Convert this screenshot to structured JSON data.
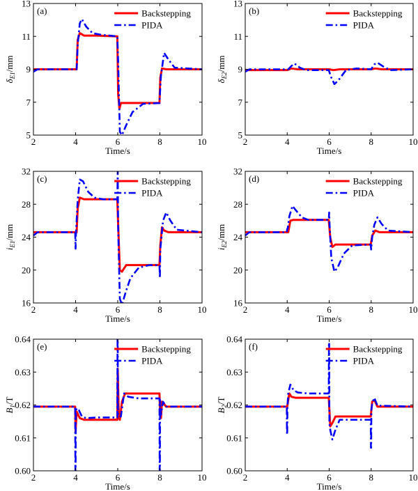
{
  "colors": {
    "backstepping": "#ff0000",
    "pida": "#0000ff",
    "axis": "#000000"
  },
  "chart_data": [
    {
      "type": "line",
      "panel": "(a)",
      "xlabel": "Time/s",
      "ylabel": "δE1/mm",
      "ylabel_parts": {
        "main": "δ",
        "sub": "E1",
        "unit": "/mm"
      },
      "xlim": [
        2,
        10
      ],
      "ylim": [
        5,
        13
      ],
      "xticks": [
        "2",
        "4",
        "6",
        "8",
        "10"
      ],
      "yticks": [
        "5",
        "7",
        "9",
        "11",
        "13"
      ],
      "legend": "top-right",
      "series": [
        {
          "name": "Backstepping",
          "style": "solid",
          "x": [
            2,
            4.05,
            4.1,
            4.2,
            4.4,
            5,
            5.98,
            6.02,
            6.08,
            6.15,
            6.3,
            7,
            7.98,
            8.02,
            8.1,
            8.3,
            10
          ],
          "y": [
            9,
            9,
            10.8,
            11.2,
            11.05,
            11.05,
            11.0,
            7.5,
            6.6,
            6.95,
            6.95,
            6.95,
            6.95,
            8.5,
            9.05,
            9.0,
            9.0
          ]
        },
        {
          "name": "PIDA",
          "style": "dashdot",
          "x": [
            2,
            2.2,
            4.05,
            4.1,
            4.2,
            4.3,
            4.5,
            4.8,
            5.2,
            5.98,
            6.02,
            6.1,
            6.2,
            6.4,
            6.7,
            7.2,
            7.98,
            8.05,
            8.2,
            8.4,
            8.7,
            10
          ],
          "y": [
            8.85,
            9.0,
            9.0,
            10.5,
            11.8,
            12.05,
            11.6,
            11.2,
            11.1,
            11.0,
            9.5,
            5.2,
            5.0,
            5.6,
            6.4,
            6.9,
            6.95,
            8.6,
            10.0,
            9.6,
            9.1,
            9.0
          ]
        }
      ]
    },
    {
      "type": "line",
      "panel": "(b)",
      "xlabel": "Time/s",
      "ylabel": "δE2/mm",
      "ylabel_parts": {
        "main": "δ",
        "sub": "E2",
        "unit": "/mm"
      },
      "xlim": [
        2,
        10
      ],
      "ylim": [
        5,
        13
      ],
      "xticks": [
        "2",
        "4",
        "6",
        "8",
        "10"
      ],
      "yticks": [
        "5",
        "7",
        "9",
        "11",
        "13"
      ],
      "legend": "top-right",
      "series": [
        {
          "name": "Backstepping",
          "style": "solid",
          "x": [
            2,
            4,
            4.2,
            4.5,
            6,
            6.2,
            6.5,
            8,
            8.2,
            8.5,
            10
          ],
          "y": [
            8.95,
            8.95,
            9.05,
            9.0,
            9.0,
            8.95,
            9.0,
            9.0,
            9.05,
            9.0,
            9.0
          ]
        },
        {
          "name": "PIDA",
          "style": "dashdot",
          "x": [
            2,
            2.2,
            4.05,
            4.2,
            4.35,
            4.6,
            4.9,
            5.98,
            6.1,
            6.25,
            6.45,
            6.8,
            7.3,
            8.0,
            8.15,
            8.3,
            8.6,
            8.9,
            10
          ],
          "y": [
            8.85,
            9.0,
            9.0,
            9.2,
            9.35,
            9.1,
            8.95,
            8.95,
            8.5,
            8.1,
            8.35,
            8.95,
            9.05,
            9.0,
            9.3,
            9.4,
            9.15,
            8.95,
            9.0
          ]
        }
      ]
    },
    {
      "type": "line",
      "panel": "(c)",
      "xlabel": "Time/s",
      "ylabel": "iE1/mm",
      "ylabel_parts": {
        "main": "i",
        "sub": "E1",
        "unit": "/mm"
      },
      "xlim": [
        2,
        10
      ],
      "ylim": [
        16,
        32
      ],
      "xticks": [
        "2",
        "4",
        "6",
        "8",
        "10"
      ],
      "yticks": [
        "16",
        "20",
        "24",
        "28",
        "32"
      ],
      "legend": "top-right",
      "series": [
        {
          "name": "Backstepping",
          "style": "solid",
          "x": [
            2,
            4.05,
            4.1,
            4.2,
            4.4,
            5,
            5.98,
            6.02,
            6.1,
            6.2,
            6.4,
            7,
            7.98,
            8.02,
            8.1,
            8.2,
            8.4,
            10
          ],
          "y": [
            24.6,
            24.6,
            27.5,
            28.8,
            28.6,
            28.6,
            28.6,
            25.5,
            20.0,
            19.8,
            20.6,
            20.6,
            20.6,
            23.0,
            25.2,
            24.8,
            24.6,
            24.6
          ]
        },
        {
          "name": "PIDA",
          "style": "dashdot",
          "x": [
            2,
            2.2,
            3.98,
            4.0,
            4.02,
            4.1,
            4.2,
            4.35,
            4.6,
            4.9,
            5.3,
            5.98,
            6.0,
            6.02,
            6.1,
            6.2,
            6.4,
            6.6,
            7.0,
            7.5,
            7.98,
            8.0,
            8.02,
            8.15,
            8.3,
            8.5,
            8.8,
            10
          ],
          "y": [
            24.2,
            24.6,
            24.6,
            22.6,
            24.6,
            28.5,
            31.0,
            30.8,
            29.5,
            28.8,
            28.6,
            28.6,
            32.0,
            25.0,
            16.5,
            15.8,
            17.5,
            19.0,
            20.3,
            20.6,
            20.6,
            19.0,
            22.5,
            26.0,
            27.0,
            26.0,
            24.9,
            24.6
          ]
        }
      ]
    },
    {
      "type": "line",
      "panel": "(d)",
      "xlabel": "Time/s",
      "ylabel": "iE2/mm",
      "ylabel_parts": {
        "main": "i",
        "sub": "E2",
        "unit": "/mm"
      },
      "xlim": [
        2,
        10
      ],
      "ylim": [
        16,
        32
      ],
      "xticks": [
        "2",
        "4",
        "6",
        "8",
        "10"
      ],
      "yticks": [
        "16",
        "20",
        "24",
        "28",
        "32"
      ],
      "legend": "top-right",
      "series": [
        {
          "name": "Backstepping",
          "style": "solid",
          "x": [
            2,
            4.05,
            4.15,
            4.3,
            5,
            5.98,
            6.05,
            6.15,
            6.3,
            7,
            7.98,
            8.05,
            8.2,
            8.4,
            10
          ],
          "y": [
            24.6,
            24.6,
            26.0,
            26.1,
            26.1,
            26.1,
            24.0,
            22.8,
            23.1,
            23.1,
            23.1,
            24.2,
            24.8,
            24.6,
            24.6
          ]
        },
        {
          "name": "PIDA",
          "style": "dashdot",
          "x": [
            2,
            2.2,
            3.98,
            4.0,
            4.02,
            4.1,
            4.25,
            4.4,
            4.7,
            5.0,
            5.98,
            6.0,
            6.02,
            6.1,
            6.25,
            6.4,
            6.7,
            7.1,
            7.98,
            8.0,
            8.05,
            8.15,
            8.3,
            8.5,
            8.8,
            10
          ],
          "y": [
            24.2,
            24.6,
            24.6,
            25.0,
            25.0,
            26.5,
            27.8,
            27.3,
            26.4,
            26.1,
            26.1,
            27.0,
            25.5,
            21.5,
            19.8,
            20.3,
            22.0,
            23.0,
            23.1,
            22.5,
            24.0,
            25.5,
            26.4,
            25.6,
            24.8,
            24.6
          ]
        }
      ]
    },
    {
      "type": "line",
      "panel": "(e)",
      "xlabel": "Time/s",
      "ylabel": "B1/T",
      "ylabel_parts": {
        "main": "B",
        "sub": "1",
        "unit": "/T"
      },
      "xlim": [
        2,
        10
      ],
      "ylim": [
        0.6,
        0.64
      ],
      "xticks": [
        "2",
        "4",
        "6",
        "8",
        "10"
      ],
      "yticks": [
        "0.60",
        "0.61",
        "0.62",
        "0.63",
        "0.64"
      ],
      "legend": "top-right",
      "series": [
        {
          "name": "Backstepping",
          "style": "solid",
          "x": [
            2,
            3.98,
            4.0,
            4.05,
            4.2,
            4.4,
            5,
            5.98,
            6.0,
            6.05,
            6.1,
            6.2,
            6.35,
            7,
            7.98,
            8.0,
            8.05,
            8.1,
            8.3,
            10
          ],
          "y": [
            0.6195,
            0.6195,
            0.612,
            0.618,
            0.616,
            0.6155,
            0.6155,
            0.6155,
            0.631,
            0.6165,
            0.6155,
            0.621,
            0.6235,
            0.6235,
            0.6235,
            0.6195,
            0.616,
            0.621,
            0.6195,
            0.6195
          ]
        },
        {
          "name": "PIDA",
          "style": "dashdot",
          "x": [
            2,
            3.98,
            3.99,
            4.0,
            4.01,
            4.05,
            4.15,
            4.3,
            4.5,
            5,
            5.98,
            5.99,
            6.0,
            6.01,
            6.05,
            6.15,
            6.3,
            6.5,
            7,
            7.98,
            7.99,
            8.0,
            8.01,
            8.05,
            8.15,
            8.3,
            10
          ],
          "y": [
            0.6195,
            0.6195,
            0.6,
            0.6,
            0.618,
            0.619,
            0.6185,
            0.6165,
            0.616,
            0.6162,
            0.6162,
            0.64,
            0.64,
            0.6175,
            0.6165,
            0.6165,
            0.6235,
            0.6225,
            0.622,
            0.622,
            0.6,
            0.6,
            0.6215,
            0.617,
            0.621,
            0.6195,
            0.6195
          ]
        }
      ]
    },
    {
      "type": "line",
      "panel": "(f)",
      "xlabel": "Time/s",
      "ylabel": "B2/T",
      "ylabel_parts": {
        "main": "B",
        "sub": "2",
        "unit": "/T"
      },
      "xlim": [
        2,
        10
      ],
      "ylim": [
        0.6,
        0.64
      ],
      "xticks": [
        "2",
        "4",
        "6",
        "8",
        "10"
      ],
      "yticks": [
        "0.60",
        "0.61",
        "0.62",
        "0.63",
        "0.64"
      ],
      "legend": "top-right",
      "series": [
        {
          "name": "Backstepping",
          "style": "solid",
          "x": [
            2,
            4.0,
            4.1,
            4.2,
            4.4,
            5,
            5.98,
            6.05,
            6.15,
            6.3,
            6.5,
            7,
            7.98,
            8.05,
            8.15,
            8.3,
            10
          ],
          "y": [
            0.6195,
            0.6195,
            0.6235,
            0.6225,
            0.6222,
            0.6222,
            0.6222,
            0.6135,
            0.6145,
            0.6165,
            0.6165,
            0.6165,
            0.6165,
            0.621,
            0.6215,
            0.6195,
            0.6195
          ]
        },
        {
          "name": "PIDA",
          "style": "dashdot",
          "x": [
            2,
            3.98,
            3.99,
            4.0,
            4.01,
            4.05,
            4.15,
            4.3,
            4.5,
            5,
            5.98,
            5.99,
            6.0,
            6.01,
            6.05,
            6.15,
            6.3,
            6.5,
            7,
            7.98,
            7.99,
            8.0,
            8.01,
            8.05,
            8.15,
            8.3,
            10
          ],
          "y": [
            0.6195,
            0.6195,
            0.611,
            0.611,
            0.6195,
            0.6235,
            0.6262,
            0.6245,
            0.6238,
            0.6235,
            0.6235,
            0.639,
            0.639,
            0.6145,
            0.6125,
            0.6095,
            0.6125,
            0.6155,
            0.6155,
            0.6155,
            0.607,
            0.607,
            0.6185,
            0.6205,
            0.6222,
            0.6198,
            0.6195
          ]
        }
      ]
    }
  ]
}
